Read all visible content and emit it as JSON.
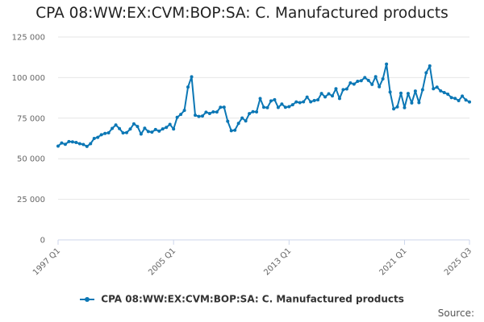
{
  "chart_data": {
    "type": "line",
    "title": "CPA 08:WW:EX:CVM:BOP:SA: C. Manufactured products",
    "xlabel": "",
    "ylabel": "",
    "ylim": [
      0,
      125000
    ],
    "yticks": [
      0,
      25000,
      50000,
      75000,
      100000,
      125000
    ],
    "y_tick_labels": [
      "0",
      "25 000",
      "50 000",
      "75 000",
      "100 000",
      "125 000"
    ],
    "x_tick_labels": [
      "1997 Q1",
      "2005 Q1",
      "2013 Q1",
      "2021 Q1",
      "2025 Q3"
    ],
    "x_tick_index": [
      0,
      32,
      64,
      96,
      114
    ],
    "grid": true,
    "legend_position": "bottom",
    "series": [
      {
        "name": "CPA 08:WW:EX:CVM:BOP:SA: C. Manufactured products",
        "color": "#0b77b5",
        "x": [
          "1997 Q1",
          "1997 Q2",
          "1997 Q3",
          "1997 Q4",
          "1998 Q1",
          "1998 Q2",
          "1998 Q3",
          "1998 Q4",
          "1999 Q1",
          "1999 Q2",
          "1999 Q3",
          "1999 Q4",
          "2000 Q1",
          "2000 Q2",
          "2000 Q3",
          "2000 Q4",
          "2001 Q1",
          "2001 Q2",
          "2001 Q3",
          "2001 Q4",
          "2002 Q1",
          "2002 Q2",
          "2002 Q3",
          "2002 Q4",
          "2003 Q1",
          "2003 Q2",
          "2003 Q3",
          "2003 Q4",
          "2004 Q1",
          "2004 Q2",
          "2004 Q3",
          "2004 Q4",
          "2005 Q1",
          "2005 Q2",
          "2005 Q3",
          "2005 Q4",
          "2006 Q1",
          "2006 Q2",
          "2006 Q3",
          "2006 Q4",
          "2007 Q1",
          "2007 Q2",
          "2007 Q3",
          "2007 Q4",
          "2008 Q1",
          "2008 Q2",
          "2008 Q3",
          "2008 Q4",
          "2009 Q1",
          "2009 Q2",
          "2009 Q3",
          "2009 Q4",
          "2010 Q1",
          "2010 Q2",
          "2010 Q3",
          "2010 Q4",
          "2011 Q1",
          "2011 Q2",
          "2011 Q3",
          "2011 Q4",
          "2012 Q1",
          "2012 Q2",
          "2012 Q3",
          "2012 Q4",
          "2013 Q1",
          "2013 Q2",
          "2013 Q3",
          "2013 Q4",
          "2014 Q1",
          "2014 Q2",
          "2014 Q3",
          "2014 Q4",
          "2015 Q1",
          "2015 Q2",
          "2015 Q3",
          "2015 Q4",
          "2016 Q1",
          "2016 Q2",
          "2016 Q3",
          "2016 Q4",
          "2017 Q1",
          "2017 Q2",
          "2017 Q3",
          "2017 Q4",
          "2018 Q1",
          "2018 Q2",
          "2018 Q3",
          "2018 Q4",
          "2019 Q1",
          "2019 Q2",
          "2019 Q3",
          "2019 Q4",
          "2020 Q1",
          "2020 Q2",
          "2020 Q3",
          "2020 Q4",
          "2021 Q1",
          "2021 Q2",
          "2021 Q3",
          "2021 Q4",
          "2022 Q1",
          "2022 Q2",
          "2022 Q3",
          "2022 Q4",
          "2023 Q1",
          "2023 Q2",
          "2023 Q3",
          "2023 Q4",
          "2024 Q1",
          "2024 Q2",
          "2024 Q3",
          "2024 Q4",
          "2025 Q1",
          "2025 Q2",
          "2025 Q3"
        ],
        "values": [
          57800,
          59700,
          58900,
          60600,
          60400,
          60000,
          59300,
          58800,
          57600,
          59300,
          62500,
          63200,
          64800,
          65600,
          66000,
          68700,
          70800,
          68600,
          65900,
          66100,
          68300,
          71500,
          69900,
          65200,
          68800,
          66800,
          66400,
          68000,
          67000,
          68400,
          69300,
          71200,
          68300,
          75500,
          77300,
          79800,
          94200,
          100500,
          76800,
          76100,
          76300,
          78700,
          77900,
          78900,
          78800,
          81700,
          81800,
          73100,
          67300,
          67600,
          71800,
          75100,
          73300,
          77800,
          79000,
          78900,
          87100,
          81700,
          81500,
          85600,
          86400,
          81600,
          83700,
          81700,
          82100,
          83300,
          85000,
          84600,
          85100,
          88000,
          85100,
          85900,
          86300,
          90200,
          88100,
          90000,
          88700,
          93100,
          87100,
          92600,
          93000,
          96700,
          96000,
          97700,
          98100,
          100000,
          98300,
          95800,
          100600,
          94400,
          99200,
          108300,
          91100,
          80700,
          82000,
          90400,
          81500,
          90200,
          84400,
          91700,
          84600,
          92500,
          103000,
          107200,
          93100,
          94100,
          91800,
          90800,
          89800,
          87700,
          87200,
          85800,
          88600,
          86200,
          85000
        ]
      }
    ]
  },
  "legend": {
    "label": "CPA 08:WW:EX:CVM:BOP:SA: C. Manufactured products"
  },
  "footer": {
    "source_label": "Source:"
  }
}
